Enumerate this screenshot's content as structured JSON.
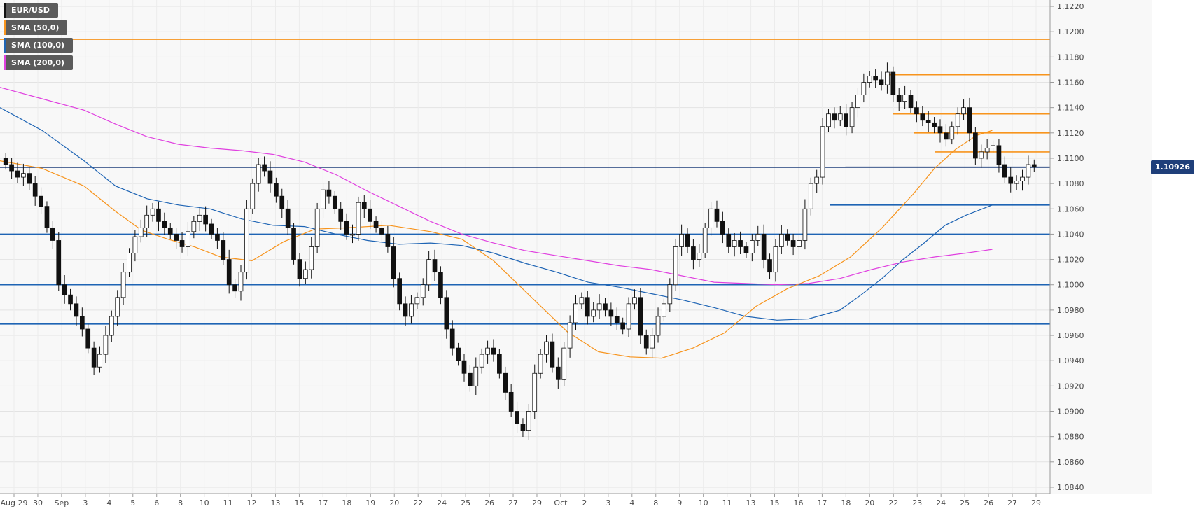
{
  "legend": [
    {
      "label": "EUR/USD",
      "color": "#111111"
    },
    {
      "label": "SMA (50,0)",
      "color": "#f7941d"
    },
    {
      "label": "SMA (100,0)",
      "color": "#1e64b4"
    },
    {
      "label": "SMA (200,0)",
      "color": "#e040e0"
    }
  ],
  "price_tag": {
    "label": "1.10926",
    "value": 1.10926,
    "color": "#1f3f7a"
  },
  "chart_data": {
    "type": "candlestick",
    "symbol": "EUR/USD",
    "timeframe": "1h",
    "ylim": [
      1.0835,
      1.1225
    ],
    "y_ticks": [
      1.084,
      1.086,
      1.088,
      1.09,
      1.092,
      1.094,
      1.096,
      1.098,
      1.1,
      1.102,
      1.104,
      1.106,
      1.108,
      1.11,
      1.112,
      1.114,
      1.116,
      1.118,
      1.12,
      1.122
    ],
    "y_tick_labels": [
      "1.0840",
      "1.0860",
      "1.0880",
      "1.0900",
      "1.0920",
      "1.0940",
      "1.0960",
      "1.0980",
      "1.1000",
      "1.1020",
      "1.1040",
      "1.1060",
      "1.1080",
      "1.1100",
      "1.1120",
      "1.1140",
      "1.1160",
      "1.1180",
      "1.1200",
      "1.1220"
    ],
    "x_labels": [
      "Aug 29",
      "30",
      "Sep",
      "3",
      "4",
      "5",
      "6",
      "8",
      "10",
      "11",
      "12",
      "13",
      "15",
      "17",
      "18",
      "19",
      "20",
      "22",
      "24",
      "25",
      "26",
      "27",
      "29",
      "Oct",
      "2",
      "3",
      "4",
      "8",
      "9",
      "10",
      "11",
      "13",
      "15",
      "16",
      "17",
      "18",
      "20",
      "22",
      "23",
      "24",
      "25",
      "26",
      "27",
      "29"
    ],
    "grid": true,
    "current_price": 1.10926,
    "sma": [
      {
        "name": "SMA (50,0)",
        "color": "#f7941d",
        "points": [
          [
            0,
            1.1098
          ],
          [
            0.04,
            1.1092
          ],
          [
            0.08,
            1.1078
          ],
          [
            0.11,
            1.1058
          ],
          [
            0.135,
            1.1043
          ],
          [
            0.16,
            1.1036
          ],
          [
            0.185,
            1.103
          ],
          [
            0.21,
            1.1022
          ],
          [
            0.24,
            1.1019
          ],
          [
            0.27,
            1.1034
          ],
          [
            0.3,
            1.1044
          ],
          [
            0.33,
            1.1045
          ],
          [
            0.37,
            1.1047
          ],
          [
            0.41,
            1.1042
          ],
          [
            0.44,
            1.1036
          ],
          [
            0.47,
            1.1019
          ],
          [
            0.5,
            1.0995
          ],
          [
            0.54,
            1.0963
          ],
          [
            0.57,
            1.0947
          ],
          [
            0.6,
            1.0943
          ],
          [
            0.63,
            1.0942
          ],
          [
            0.66,
            1.095
          ],
          [
            0.69,
            1.0962
          ],
          [
            0.72,
            1.0983
          ],
          [
            0.75,
            1.0997
          ],
          [
            0.78,
            1.1007
          ],
          [
            0.81,
            1.1022
          ],
          [
            0.84,
            1.1045
          ],
          [
            0.87,
            1.1072
          ],
          [
            0.89,
            1.1092
          ],
          [
            0.91,
            1.1107
          ],
          [
            0.93,
            1.1118
          ],
          [
            0.945,
            1.1122
          ]
        ]
      },
      {
        "name": "SMA (100,0)",
        "color": "#1e64b4",
        "points": [
          [
            0,
            1.114
          ],
          [
            0.04,
            1.1122
          ],
          [
            0.08,
            1.1098
          ],
          [
            0.11,
            1.1078
          ],
          [
            0.14,
            1.1068
          ],
          [
            0.17,
            1.1063
          ],
          [
            0.2,
            1.106
          ],
          [
            0.23,
            1.1052
          ],
          [
            0.26,
            1.1047
          ],
          [
            0.29,
            1.1046
          ],
          [
            0.32,
            1.104
          ],
          [
            0.35,
            1.1035
          ],
          [
            0.38,
            1.1032
          ],
          [
            0.41,
            1.1033
          ],
          [
            0.44,
            1.1031
          ],
          [
            0.47,
            1.1025
          ],
          [
            0.5,
            1.1017
          ],
          [
            0.53,
            1.101
          ],
          [
            0.56,
            1.1002
          ],
          [
            0.59,
            1.0998
          ],
          [
            0.62,
            1.0993
          ],
          [
            0.65,
            1.0988
          ],
          [
            0.68,
            1.0982
          ],
          [
            0.71,
            1.0975
          ],
          [
            0.74,
            1.0972
          ],
          [
            0.77,
            1.0973
          ],
          [
            0.8,
            1.098
          ],
          [
            0.82,
            1.0992
          ],
          [
            0.84,
            1.1005
          ],
          [
            0.86,
            1.102
          ],
          [
            0.88,
            1.1033
          ],
          [
            0.9,
            1.1047
          ],
          [
            0.92,
            1.1055
          ],
          [
            0.945,
            1.1063
          ]
        ]
      },
      {
        "name": "SMA (200,0)",
        "color": "#e040e0",
        "points": [
          [
            0,
            1.1156
          ],
          [
            0.04,
            1.1147
          ],
          [
            0.08,
            1.1138
          ],
          [
            0.11,
            1.1127
          ],
          [
            0.14,
            1.1117
          ],
          [
            0.17,
            1.1111
          ],
          [
            0.2,
            1.1108
          ],
          [
            0.23,
            1.1106
          ],
          [
            0.26,
            1.1103
          ],
          [
            0.29,
            1.1097
          ],
          [
            0.32,
            1.1087
          ],
          [
            0.35,
            1.1074
          ],
          [
            0.38,
            1.1062
          ],
          [
            0.41,
            1.105
          ],
          [
            0.44,
            1.104
          ],
          [
            0.47,
            1.1033
          ],
          [
            0.5,
            1.1027
          ],
          [
            0.53,
            1.1023
          ],
          [
            0.56,
            1.1019
          ],
          [
            0.59,
            1.1015
          ],
          [
            0.62,
            1.1012
          ],
          [
            0.65,
            1.1007
          ],
          [
            0.68,
            1.1002
          ],
          [
            0.71,
            1.1001
          ],
          [
            0.74,
            1.1
          ],
          [
            0.77,
            1.1001
          ],
          [
            0.8,
            1.1005
          ],
          [
            0.83,
            1.1012
          ],
          [
            0.86,
            1.1018
          ],
          [
            0.89,
            1.1022
          ],
          [
            0.92,
            1.1025
          ],
          [
            0.945,
            1.1028
          ]
        ]
      }
    ],
    "levels": [
      {
        "value": 1.1194,
        "color": "#f7941d",
        "from": 0,
        "to": 1
      },
      {
        "value": 1.1166,
        "color": "#f7941d",
        "from": 0.845,
        "to": 1
      },
      {
        "value": 1.1135,
        "color": "#f7941d",
        "from": 0.85,
        "to": 1
      },
      {
        "value": 1.112,
        "color": "#f7941d",
        "from": 0.87,
        "to": 1
      },
      {
        "value": 1.1105,
        "color": "#f7941d",
        "from": 0.89,
        "to": 1
      },
      {
        "value": 1.1093,
        "color": "#1f3f7a",
        "from": 0.805,
        "to": 1
      },
      {
        "value": 1.1063,
        "color": "#1e64b4",
        "from": 0.79,
        "to": 1
      },
      {
        "value": 1.104,
        "color": "#1e64b4",
        "from": 0,
        "to": 1
      },
      {
        "value": 1.1,
        "color": "#1e64b4",
        "from": 0,
        "to": 1
      },
      {
        "value": 1.0969,
        "color": "#1e64b4",
        "from": 0,
        "to": 1
      }
    ],
    "candles_close": [
      1.1095,
      1.109,
      1.1085,
      1.1088,
      1.108,
      1.107,
      1.1062,
      1.1045,
      1.1035,
      1.1,
      1.0992,
      1.0985,
      1.0975,
      1.0965,
      1.095,
      1.0935,
      1.0945,
      1.096,
      1.0975,
      1.099,
      1.101,
      1.1025,
      1.1038,
      1.1045,
      1.1055,
      1.106,
      1.105,
      1.1045,
      1.104,
      1.1035,
      1.103,
      1.1042,
      1.105,
      1.1055,
      1.1048,
      1.104,
      1.1035,
      1.102,
      1.1,
      1.0995,
      1.101,
      1.106,
      1.108,
      1.1095,
      1.109,
      1.108,
      1.107,
      1.106,
      1.1045,
      1.102,
      1.1005,
      1.1012,
      1.103,
      1.106,
      1.1075,
      1.107,
      1.106,
      1.105,
      1.104,
      1.104,
      1.1065,
      1.106,
      1.105,
      1.1045,
      1.104,
      1.103,
      1.1005,
      1.0985,
      1.0975,
      1.0985,
      1.099,
      1.1,
      1.102,
      1.101,
      1.099,
      1.0965,
      1.095,
      1.094,
      1.093,
      1.092,
      1.0935,
      1.0945,
      1.095,
      1.0945,
      1.093,
      1.0915,
      1.09,
      1.089,
      1.0885,
      1.09,
      1.093,
      1.0945,
      1.0955,
      1.0935,
      1.0925,
      1.095,
      1.097,
      1.0985,
      1.099,
      1.0975,
      1.098,
      1.0985,
      1.098,
      1.0975,
      1.097,
      1.0965,
      1.0985,
      1.099,
      1.096,
      1.095,
      1.096,
      1.0975,
      1.0985,
      1.1,
      1.103,
      1.104,
      1.103,
      1.102,
      1.1025,
      1.1045,
      1.106,
      1.105,
      1.104,
      1.103,
      1.1035,
      1.103,
      1.1025,
      1.1035,
      1.104,
      1.102,
      1.101,
      1.103,
      1.104,
      1.1035,
      1.103,
      1.1035,
      1.106,
      1.108,
      1.1085,
      1.1125,
      1.1135,
      1.113,
      1.1135,
      1.1125,
      1.114,
      1.115,
      1.116,
      1.1165,
      1.1162,
      1.1158,
      1.1168,
      1.115,
      1.1145,
      1.115,
      1.114,
      1.1135,
      1.113,
      1.1128,
      1.1125,
      1.112,
      1.1115,
      1.1125,
      1.1135,
      1.114,
      1.112,
      1.11,
      1.1105,
      1.1108,
      1.111,
      1.1095,
      1.1085,
      1.108,
      1.1082,
      1.1085,
      1.1095,
      1.1093
    ]
  }
}
